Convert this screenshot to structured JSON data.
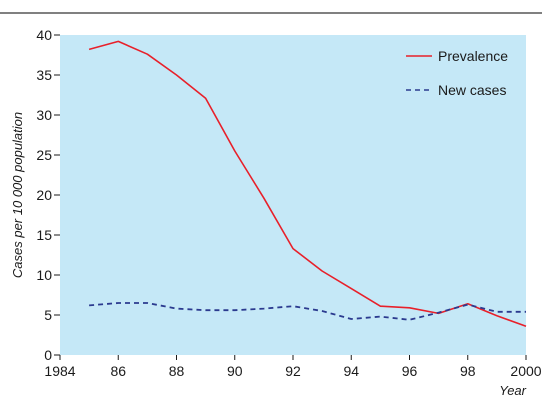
{
  "chart_data": {
    "type": "line",
    "title": "",
    "xlabel": "Year",
    "ylabel": "Cases per 10 000 population",
    "xlim": [
      1984,
      2000
    ],
    "ylim": [
      0,
      40
    ],
    "x_ticks": [
      1984,
      1986,
      1988,
      1990,
      1992,
      1994,
      1996,
      1998,
      2000
    ],
    "x_tick_labels": [
      "1984",
      "86",
      "88",
      "90",
      "92",
      "94",
      "96",
      "98",
      "2000"
    ],
    "y_ticks": [
      0,
      5,
      10,
      15,
      20,
      25,
      30,
      35,
      40
    ],
    "y_tick_labels": [
      "0",
      "5",
      "10",
      "15",
      "20",
      "25",
      "30",
      "35",
      "40"
    ],
    "grid": false,
    "legend_position": "top-right",
    "background_color": "#c5e8f7",
    "series": [
      {
        "name": "Prevalence",
        "color": "#e8202a",
        "style": "solid",
        "x": [
          1985,
          1986,
          1987,
          1988,
          1989,
          1990,
          1991,
          1992,
          1993,
          1994,
          1995,
          1996,
          1997,
          1998,
          1999,
          2000
        ],
        "values": [
          38.2,
          39.2,
          37.6,
          35.0,
          32.1,
          25.5,
          19.6,
          13.3,
          10.5,
          8.3,
          6.1,
          5.9,
          5.2,
          6.4,
          4.9,
          3.6
        ]
      },
      {
        "name": "New cases",
        "color": "#2b3a8f",
        "style": "dashed",
        "x": [
          1985,
          1986,
          1987,
          1988,
          1989,
          1990,
          1991,
          1992,
          1993,
          1994,
          1995,
          1996,
          1997,
          1998,
          1999,
          2000
        ],
        "values": [
          6.2,
          6.5,
          6.5,
          5.8,
          5.6,
          5.6,
          5.8,
          6.1,
          5.5,
          4.5,
          4.8,
          4.4,
          5.3,
          6.3,
          5.4,
          5.4
        ]
      }
    ]
  }
}
